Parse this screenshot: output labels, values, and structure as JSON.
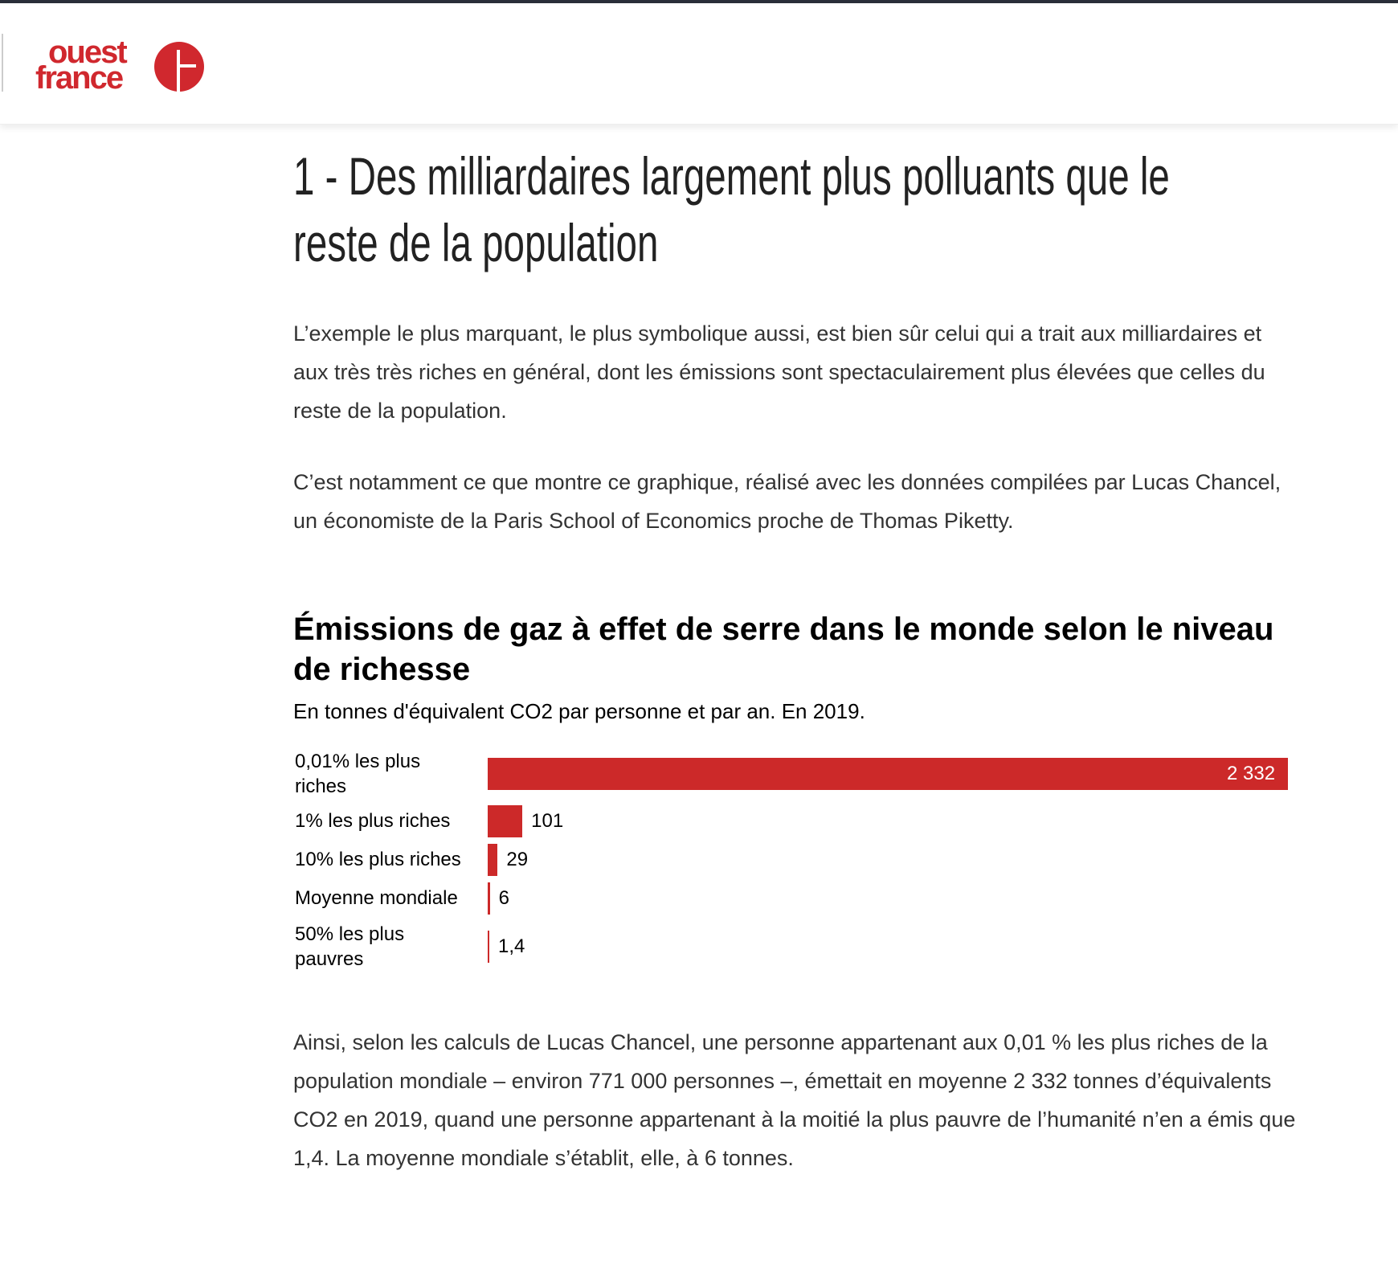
{
  "header": {
    "logo_text": [
      "ouest",
      "france"
    ]
  },
  "article": {
    "title": "1 - Des milliardaires largement plus polluants que le reste de la population",
    "paragraphs": [
      "L’exemple le plus marquant, le plus symbolique aussi, est bien sûr celui qui a trait aux milliardaires et aux très très riches en général, dont les émissions sont spectaculairement plus élevées que celles du reste de la population.",
      "C’est notamment ce que montre ce graphique, réalisé avec les données compilées par Lucas Chancel, un économiste de la Paris School of Economics proche de Thomas Piketty.",
      "Ainsi, selon les calculs de Lucas Chancel, une personne appartenant aux 0,01 % les plus riches de la population mondiale – environ 771 000 personnes –, émettait en moyenne 2 332 tonnes d’équivalents CO2 en 2019, quand une personne appartenant à la moitié la plus pauvre de l’humanité n’en a émis que 1,4. La moyenne mondiale s’établit, elle, à 6 tonnes."
    ]
  },
  "chart_data": {
    "type": "bar",
    "orientation": "horizontal",
    "title": "Émissions de gaz à effet de serre dans le monde selon le niveau de richesse",
    "subtitle": "En tonnes d'équivalent CO2 par personne et par an. En 2019.",
    "categories": [
      "0,01% les plus riches",
      "1% les plus riches",
      "10% les plus riches",
      "Moyenne mondiale",
      "50% les plus pauvres"
    ],
    "values": [
      2332,
      101,
      29,
      6,
      1.4
    ],
    "value_labels": [
      "2 332",
      "101",
      "29",
      "6",
      "1,4"
    ],
    "color": "#cc2929",
    "xlim": [
      0,
      2332
    ]
  }
}
